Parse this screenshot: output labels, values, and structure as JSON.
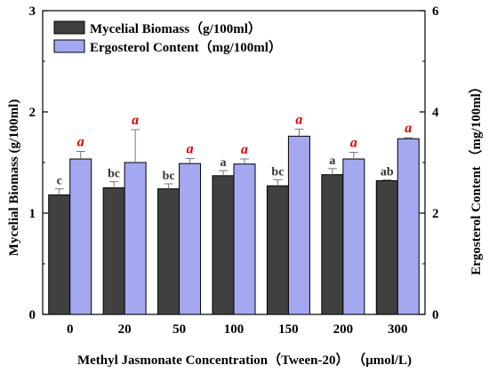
{
  "chart_data": {
    "type": "bar",
    "xlabel": "Methyl Jasmonate Concentration（Tween-20） （μmol/L)",
    "ylabel": "Mycelial Biomass (g/100ml)",
    "ylabel_right": "Ergosterol Content （mg/100ml）",
    "categories": [
      "0",
      "20",
      "50",
      "100",
      "150",
      "200",
      "300"
    ],
    "ylim": [
      0,
      3
    ],
    "ylim_right": [
      0,
      6
    ],
    "yticks": [
      "0",
      "1",
      "2",
      "3"
    ],
    "yticks_right": [
      "0",
      "2",
      "4",
      "6"
    ],
    "legend_position": "top-left",
    "series": [
      {
        "name": "Mycelial Biomass（g/100ml）",
        "axis": "left",
        "color": "#404040",
        "values": [
          1.18,
          1.25,
          1.24,
          1.37,
          1.27,
          1.38,
          1.32
        ],
        "errors": [
          0.06,
          0.06,
          0.05,
          0.05,
          0.06,
          0.06,
          0.01
        ],
        "labels": [
          "c",
          "bc",
          "bc",
          "a",
          "bc",
          "a",
          "ab"
        ]
      },
      {
        "name": "Ergosterol Content（mg/100ml）",
        "axis": "right",
        "color": "#a3a8f0",
        "values": [
          3.07,
          3.0,
          2.98,
          2.97,
          3.52,
          3.07,
          3.47
        ],
        "errors": [
          0.15,
          0.65,
          0.1,
          0.1,
          0.14,
          0.13,
          0.02
        ],
        "labels": [
          "a",
          "a",
          "a",
          "a",
          "a",
          "a",
          "a"
        ]
      }
    ]
  }
}
